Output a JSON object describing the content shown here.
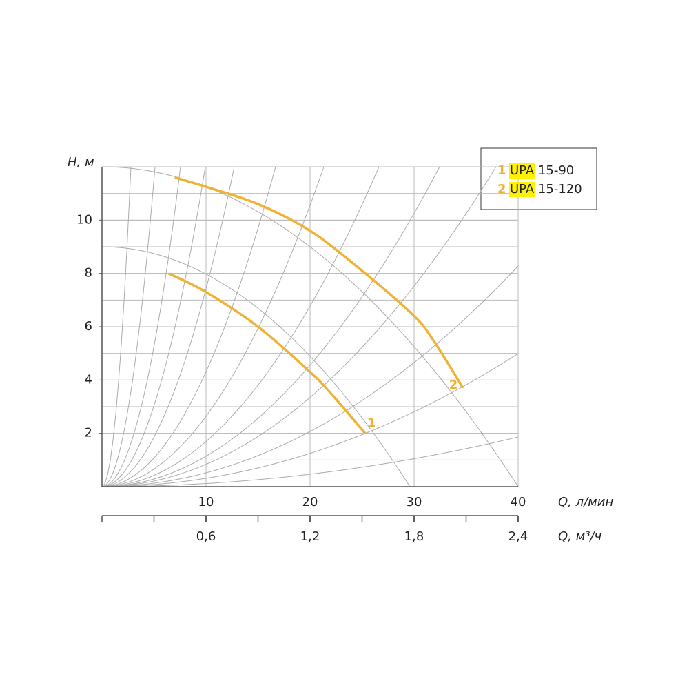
{
  "chart_data": {
    "type": "line",
    "ylabel": "H, м",
    "xlabel": "Q, л/мин",
    "x2label": "Q, м³/ч",
    "xlim": [
      0,
      40
    ],
    "xticks": [
      10,
      20,
      30,
      40
    ],
    "x2lim": [
      0,
      2.4
    ],
    "x2ticks": [
      {
        "value": 0.6,
        "label": "0,6"
      },
      {
        "value": 1.2,
        "label": "1,2"
      },
      {
        "value": 1.8,
        "label": "1,8"
      },
      {
        "value": 2.4,
        "label": "2,4"
      }
    ],
    "ylim": [
      0,
      12
    ],
    "yticks": [
      2,
      4,
      6,
      8,
      10
    ],
    "grid": true,
    "series": [
      {
        "label": "1",
        "name": "UPA 15-90",
        "color": "#f0b232",
        "x": [
          6.4,
          10,
          15,
          20,
          22,
          25.3
        ],
        "values": [
          8.0,
          7.3,
          6.0,
          4.3,
          3.5,
          2.0
        ]
      },
      {
        "label": "2",
        "name": "UPA 15-120",
        "color": "#f0b232",
        "x": [
          7.0,
          10,
          15,
          20,
          25,
          30,
          32,
          34.7
        ],
        "values": [
          11.6,
          11.25,
          10.6,
          9.6,
          8.1,
          6.4,
          5.4,
          3.7
        ]
      }
    ]
  }
}
